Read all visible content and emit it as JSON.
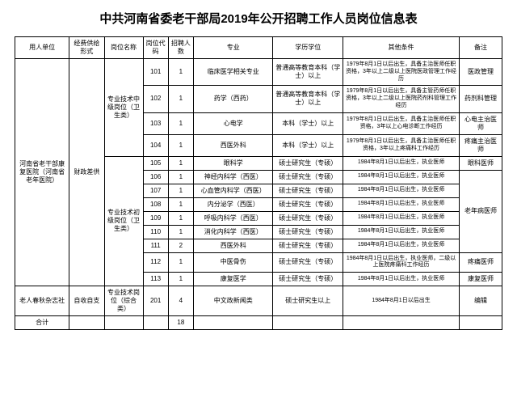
{
  "title": "中共河南省委老干部局2019年公开招聘工作人员岗位信息表",
  "headers": {
    "unit": "用人单位",
    "fund": "经费供给形式",
    "post": "岗位名称",
    "code": "岗位代码",
    "count": "招聘人数",
    "major": "专业",
    "edu": "学历学位",
    "cond": "其他条件",
    "note": "备注"
  },
  "unit_main": "河南省老干部康复医院（河南省老年医院）",
  "fund_main": "财政差供",
  "post_mid": "专业技术中级岗位（卫生类）",
  "post_jr": "专业技术初级岗位（卫生类）",
  "rows_mid": [
    {
      "code": "101",
      "cnt": "1",
      "major": "临床医学相关专业",
      "edu": "普通高等教育本科（学士）以上",
      "cond": "1979年8月1日以后出生，具备主治医师任职资格，3年以上二级以上医院医政管理工作经历",
      "note": "医政管理"
    },
    {
      "code": "102",
      "cnt": "1",
      "major": "药学（西药）",
      "edu": "普通高等教育本科（学士）以上",
      "cond": "1979年8月1日以后出生，具备主管药师任职资格，3年以上二级以上医院药剂科管理工作经历",
      "note": "药剂科管理"
    },
    {
      "code": "103",
      "cnt": "1",
      "major": "心电学",
      "edu": "本科（学士）以上",
      "cond": "1979年8月1日以后出生，具备主治医师任职资格，3年以上心电诊断工作经历",
      "note": "心电主治医师"
    },
    {
      "code": "104",
      "cnt": "1",
      "major": "西医外科",
      "edu": "本科（学士）以上",
      "cond": "1979年8月1日以后出生，具备主治医师任职资格，3年以上疼痛科工作经历",
      "note": "疼痛主治医师"
    }
  ],
  "rows_jr": [
    {
      "code": "105",
      "cnt": "1",
      "major": "眼科学",
      "edu": "硕士研究生（专硕）",
      "cond": "1984年8月1日以后出生，执业医师",
      "note": "眼科医师"
    },
    {
      "code": "106",
      "cnt": "1",
      "major": "神经内科学（西医）",
      "edu": "硕士研究生（专硕）",
      "cond": "1984年8月1日以后出生，执业医师",
      "note": ""
    },
    {
      "code": "107",
      "cnt": "1",
      "major": "心血管内科学（西医）",
      "edu": "硕士研究生（专硕）",
      "cond": "1984年8月1日以后出生，执业医师",
      "note": ""
    },
    {
      "code": "108",
      "cnt": "1",
      "major": "内分泌学（西医）",
      "edu": "硕士研究生（专硕）",
      "cond": "1984年8月1日以后出生，执业医师",
      "note": ""
    },
    {
      "code": "109",
      "cnt": "1",
      "major": "呼吸内科学（西医）",
      "edu": "硕士研究生（专硕）",
      "cond": "1984年8月1日以后出生，执业医师",
      "note": ""
    },
    {
      "code": "110",
      "cnt": "1",
      "major": "消化内科学（西医）",
      "edu": "硕士研究生（专硕）",
      "cond": "1984年8月1日以后出生，执业医师",
      "note": ""
    },
    {
      "code": "111",
      "cnt": "2",
      "major": "西医外科",
      "edu": "硕士研究生（专硕）",
      "cond": "1984年8月1日以后出生，执业医师",
      "note": ""
    },
    {
      "code": "112",
      "cnt": "1",
      "major": "中医骨伤",
      "edu": "硕士研究生（专硕）",
      "cond": "1984年8月1日以后出生，执业医师，二级以上医院疼痛科工作经历",
      "note": "疼痛医师"
    },
    {
      "code": "113",
      "cnt": "1",
      "major": "康复医学",
      "edu": "硕士研究生（专硕）",
      "cond": "1984年8月1日以后出生，执业医师",
      "note": "康复医师"
    }
  ],
  "note_elder": "老年病医师",
  "row2": {
    "unit": "老人春秋杂志社",
    "fund": "自收自支",
    "post": "专业技术岗位（综合类）",
    "code": "201",
    "cnt": "4",
    "major": "中文政新闻类",
    "edu": "硕士研究生以上",
    "cond": "1984年8月1日以后出生",
    "note": "编辑"
  },
  "total_label": "合计",
  "total_count": "18"
}
